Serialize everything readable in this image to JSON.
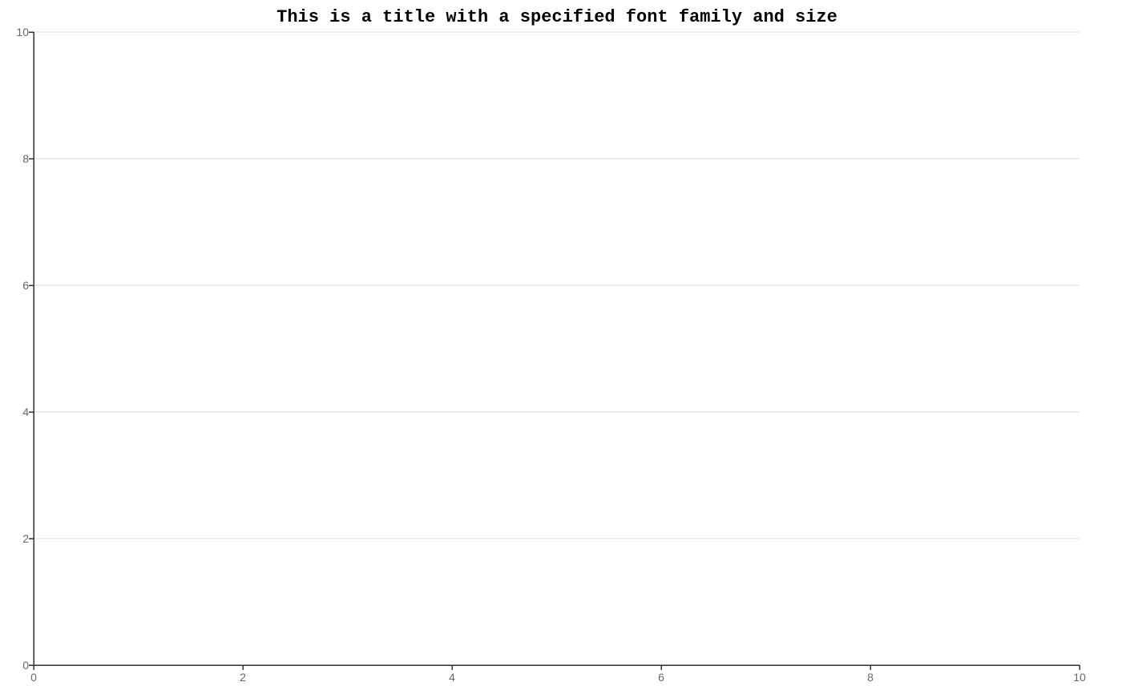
{
  "chart_data": {
    "type": "scatter",
    "title": "This is a title with a specified font family and size",
    "xlabel": "",
    "ylabel": "",
    "xlim": [
      0,
      10
    ],
    "ylim": [
      0,
      10
    ],
    "x_ticks": [
      "0",
      "2",
      "4",
      "6",
      "8",
      "10"
    ],
    "y_ticks": [
      "0",
      "2",
      "4",
      "6",
      "8",
      "10"
    ],
    "grid": true,
    "series": []
  },
  "colors": {
    "background": "#ffffff",
    "grid": "#d9d9d9",
    "axis": "#333333",
    "tick_text": "#666666",
    "title": "#000000"
  }
}
